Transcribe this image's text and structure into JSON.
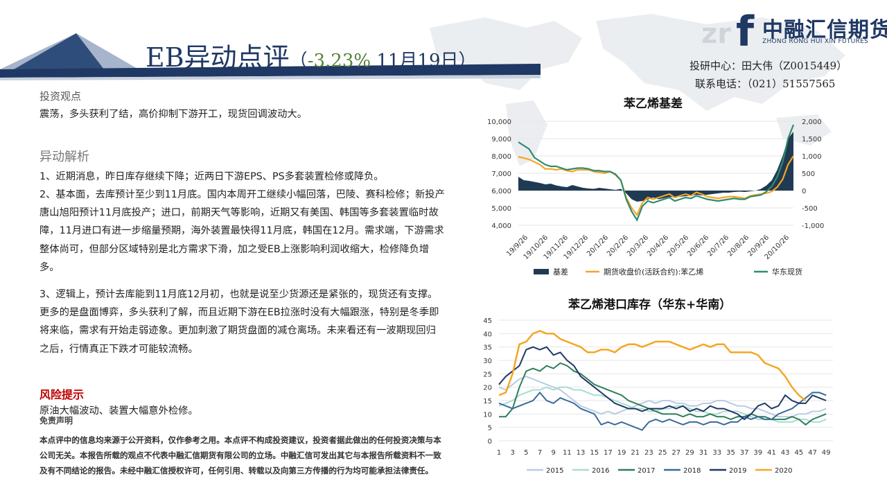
{
  "header": {
    "title_main": "EB异动点评",
    "title_open": "（",
    "title_change": "-3.23%",
    "title_date": " 11月19日",
    "title_close": "）"
  },
  "brand": {
    "name_cn": "中融汇信期货",
    "name_en": "ZHONG RONG HUI XIN FUTURES",
    "mark_letters": "zr",
    "mark_f": "f"
  },
  "contact": {
    "researcher": "投研中心：田大伟（Z0015449）",
    "phone": "联系电话：（021）51557565"
  },
  "view": {
    "heading": "投资观点",
    "text": "震荡，多头获利了结，高价抑制下游开工，现货回调波动大。"
  },
  "analysis": {
    "heading": "异动解析",
    "p1": "1、近期消息，昨日库存继续下降；近两日下游EPS、PS多套装置检修或降负。",
    "p2": "2、基本面，去库预计至少到11月底。国内本周开工继续小幅回落，巴陵、赛科检修；新投产唐山旭阳预计11月底投产；进口，前期天气等影响，近期又有美国、韩国等多套装置临时故障，11月进口有进一步缩量预期，海外装置最快得11月底，韩国在12月。需求端，下游需求整体尚可，但部分区域特别是北方需求下滑，加之受EB上涨影响利润收缩大，检修降负增多。",
    "p3": "3、逻辑上，预计去库能到11月底12月初，也就是说至少货源还是紧张的，现货还有支撑。更多的是盘面博弈，多头获利了解，而且近期下游在EB拉涨时没有大幅跟涨，特别是冬季即将来临，需求有开始走弱迹象。更加刺激了期货盘面的减仓离场。未来看还有一波期现回归之后，行情真正下跌才可能较流畅。"
  },
  "risk": {
    "heading": "风险提示",
    "text": "原油大幅波动、装置大幅意外检修。"
  },
  "disclaimer": {
    "heading": "免责声明",
    "text": "本点评中的信息均来源于公开资料，仅作参考之用。本点评不构成投资建议，投资者据此做出的任何投资决策与本公司无关。本报告所载的观点不代表中融汇信期货有限公司的立场。中融汇信可发出其它与本报告所载资料不一致及有不同结论的报告。未经中融汇信授权许可，任何引用、转载以及向第三方传播的行为均可能承担法律责任。"
  },
  "colors": {
    "navy": "#1f3864",
    "basis": "#203a53",
    "futures": "#f5a623",
    "spot": "#2e8b6e",
    "risk": "#c00000"
  },
  "chart_data": [
    {
      "type": "line",
      "title": "苯乙烯基差",
      "x_ticks": [
        "19/9/26",
        "19/10/26",
        "19/11/26",
        "19/12/26",
        "20/1/26",
        "20/2/26",
        "20/3/26",
        "20/4/26",
        "20/5/26",
        "20/6/26",
        "20/7/26",
        "20/8/26",
        "20/9/26",
        "20/10/26"
      ],
      "ylim_left": [
        4000,
        10000
      ],
      "yticks_left": [
        "10,000",
        "9,000",
        "8,000",
        "7,000",
        "6,000",
        "5,000",
        "4,000"
      ],
      "ylim_right": [
        -1000,
        2000
      ],
      "yticks_right": [
        "2,000",
        "1,500",
        "1,000",
        "500",
        "0",
        "-500",
        "-1,000"
      ],
      "legend_position": "bottom",
      "series": [
        {
          "name": "基差",
          "axis": "right",
          "style": "area",
          "values": [
            400,
            300,
            280,
            250,
            220,
            180,
            200,
            150,
            120,
            100,
            160,
            120,
            80,
            60,
            50,
            80,
            60,
            40,
            20,
            50,
            -80,
            -250,
            -320,
            -300,
            -260,
            -200,
            -250,
            -220,
            -180,
            -200,
            -180,
            -160,
            -150,
            -120,
            -140,
            -120,
            -100,
            -80,
            -60,
            -60,
            -40,
            -30,
            -40,
            -20,
            0,
            50,
            150,
            300,
            600,
            1000,
            1500,
            1700
          ]
        },
        {
          "name": "期货收盘价(活跃合约):苯乙烯",
          "axis": "left",
          "style": "line",
          "values": [
            7950,
            7880,
            7800,
            7650,
            7500,
            7250,
            7250,
            7200,
            7250,
            7150,
            7100,
            7200,
            7200,
            7200,
            7100,
            7050,
            7000,
            7100,
            6900,
            6600,
            5600,
            5000,
            4600,
            5300,
            5600,
            5500,
            5600,
            5700,
            5800,
            5600,
            5700,
            5800,
            5700,
            5900,
            5800,
            5650,
            5600,
            5550,
            5600,
            5650,
            5650,
            5600,
            5550,
            5700,
            5750,
            5800,
            5850,
            5950,
            6200,
            6650,
            7500,
            8000
          ]
        },
        {
          "name": "华东现货",
          "axis": "left",
          "style": "line",
          "values": [
            8800,
            8600,
            8400,
            7900,
            7700,
            7500,
            7400,
            7400,
            7300,
            7200,
            7250,
            7300,
            7300,
            7250,
            7150,
            7150,
            7100,
            7100,
            6950,
            6600,
            5500,
            4800,
            4300,
            5100,
            5400,
            5300,
            5400,
            5500,
            5600,
            5400,
            5500,
            5600,
            5550,
            5700,
            5600,
            5500,
            5450,
            5400,
            5450,
            5500,
            5550,
            5500,
            5500,
            5650,
            5700,
            5750,
            5950,
            6250,
            6800,
            7650,
            9000,
            9800
          ]
        }
      ]
    },
    {
      "type": "line",
      "title": "苯乙烯港口库存（华东+华南）",
      "x_ticks": [
        "1",
        "3",
        "5",
        "7",
        "9",
        "11",
        "13",
        "15",
        "17",
        "19",
        "21",
        "23",
        "25",
        "27",
        "29",
        "31",
        "33",
        "35",
        "37",
        "39",
        "41",
        "43",
        "45",
        "47",
        "49"
      ],
      "ylim": [
        0,
        45
      ],
      "yticks": [
        "45",
        "40",
        "35",
        "30",
        "25",
        "20",
        "15",
        "10",
        "5",
        "0"
      ],
      "legend_position": "bottom",
      "series": [
        {
          "name": "2015",
          "values": [
            20,
            19,
            21,
            23,
            24,
            23,
            22,
            21,
            20,
            19,
            17,
            15,
            13,
            12,
            11,
            10,
            11,
            10,
            11,
            12,
            13,
            14,
            15,
            14,
            15,
            15,
            14,
            14,
            13,
            13,
            14,
            14,
            15,
            15,
            14,
            13,
            13,
            12,
            12,
            11,
            10,
            9,
            9,
            9,
            10,
            10,
            11,
            11,
            12
          ]
        },
        {
          "name": "2016",
          "values": [
            13,
            14,
            15,
            17,
            18,
            19,
            19,
            20,
            19,
            20,
            20,
            19,
            19,
            18,
            17,
            17,
            16,
            15,
            14,
            13,
            12,
            12,
            11,
            11,
            12,
            12,
            13,
            13,
            12,
            11,
            11,
            10,
            10,
            11,
            11,
            11,
            10,
            9,
            8,
            8,
            8,
            7,
            7,
            7,
            8,
            8,
            7,
            7,
            8
          ]
        },
        {
          "name": "2017",
          "values": [
            9,
            9,
            12,
            20,
            26,
            27,
            26,
            28,
            27,
            29,
            28,
            26,
            25,
            23,
            21,
            20,
            19,
            18,
            17,
            15,
            14,
            13,
            12,
            11,
            10,
            10,
            10,
            9,
            10,
            9,
            9,
            10,
            9,
            9,
            8,
            9,
            9,
            10,
            9,
            9,
            8,
            8,
            8,
            9,
            8,
            6,
            8,
            9,
            10
          ]
        },
        {
          "name": "2018",
          "values": [
            14,
            13,
            12,
            13,
            14,
            15,
            18,
            15,
            14,
            16,
            15,
            14,
            12,
            11,
            10,
            6,
            7,
            6,
            7,
            6,
            5,
            4,
            7,
            8,
            7,
            8,
            7,
            6,
            7,
            7,
            6,
            7,
            7,
            6,
            7,
            7,
            9,
            8,
            9,
            8,
            8,
            10,
            11,
            12,
            14,
            16,
            18,
            18,
            17
          ]
        },
        {
          "name": "2019",
          "values": [
            21,
            24,
            26,
            28,
            34,
            35,
            34,
            35,
            32,
            33,
            30,
            28,
            24,
            22,
            20,
            18,
            16,
            14,
            13,
            12,
            12,
            11,
            12,
            12,
            12,
            13,
            12,
            13,
            11,
            12,
            11,
            13,
            12,
            12,
            11,
            10,
            8,
            10,
            13,
            14,
            12,
            13,
            17,
            15,
            14,
            14,
            17,
            16,
            15
          ]
        },
        {
          "name": "2020",
          "values": [
            17,
            18,
            25,
            36,
            37,
            40,
            41,
            40,
            40,
            38,
            37,
            36,
            35,
            33,
            33,
            34,
            34,
            33,
            35,
            36,
            36,
            35,
            36,
            37,
            37,
            37,
            36,
            35,
            34,
            35,
            36,
            35,
            36,
            36,
            33,
            33,
            33,
            33,
            32,
            29,
            28,
            27,
            24,
            20,
            17,
            15
          ]
        }
      ]
    }
  ]
}
